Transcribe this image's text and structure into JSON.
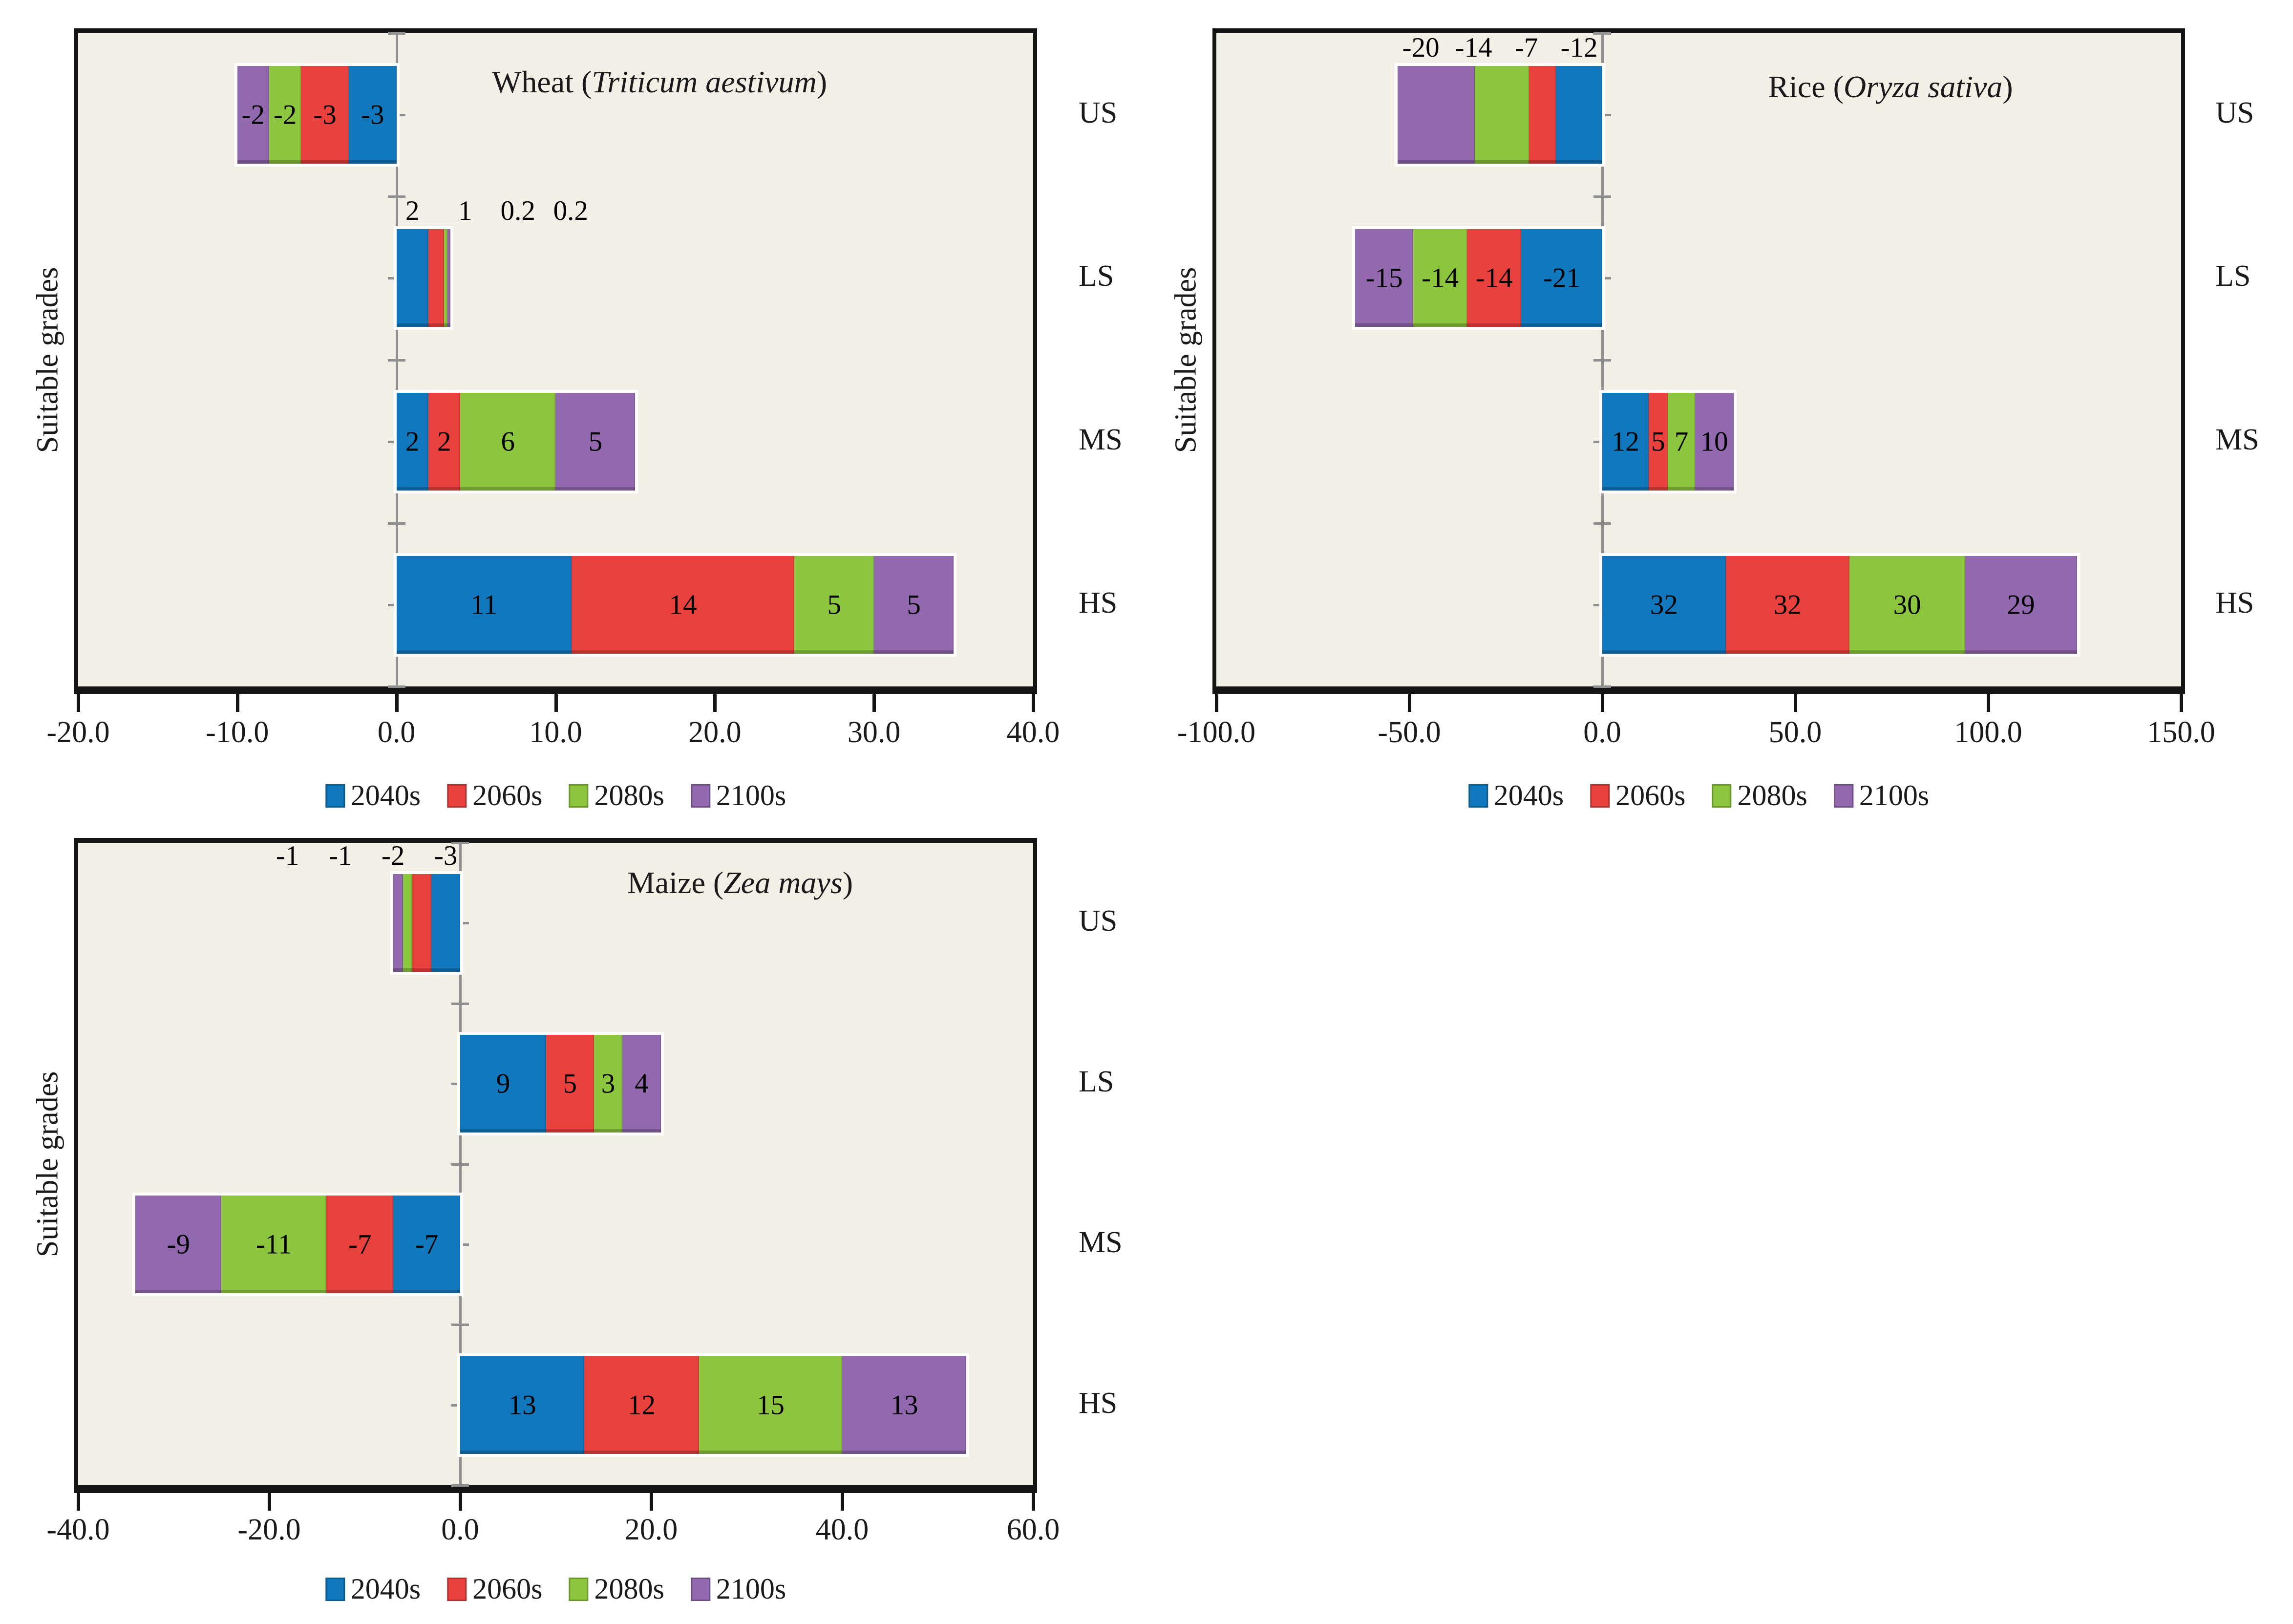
{
  "meta": {
    "plot_background": "#f2efe6",
    "page_background": "#ffffff",
    "axis_line_color": "#8f8f8f",
    "frame_color": "#141414",
    "text_color": "#1a1a1a"
  },
  "legend": {
    "items": [
      {
        "label": "2040s",
        "color": "#1278be"
      },
      {
        "label": "2060s",
        "color": "#e9423e"
      },
      {
        "label": "2080s",
        "color": "#8cc63e"
      },
      {
        "label": "2100s",
        "color": "#9268ae"
      }
    ]
  },
  "chart_data": [
    {
      "id": "wheat",
      "type": "bar",
      "orientation": "horizontal-stacked",
      "title_parts": [
        "Wheat (",
        "Triticum aestivum",
        ")"
      ],
      "ylabel": "Suitable grades",
      "categories": [
        "US",
        "LS",
        "MS",
        "HS"
      ],
      "labels_above": [
        "LS"
      ],
      "xlim": [
        -20,
        40
      ],
      "xticks": [
        "-20.0",
        "-10.0",
        "0.0",
        "10.0",
        "20.0",
        "30.0",
        "40.0"
      ],
      "xtick_values": [
        -20,
        -10,
        0,
        10,
        20,
        30,
        40
      ],
      "series": [
        {
          "name": "2040s",
          "color": "#1278be",
          "values": [
            -3,
            2,
            2,
            11
          ],
          "labels": [
            "-3",
            "2",
            "2",
            "11"
          ]
        },
        {
          "name": "2060s",
          "color": "#e9423e",
          "values": [
            -3,
            1,
            2,
            14
          ],
          "labels": [
            "-3",
            "1",
            "2",
            "14"
          ]
        },
        {
          "name": "2080s",
          "color": "#8cc63e",
          "values": [
            -2,
            0.2,
            6,
            5
          ],
          "labels": [
            "-2",
            "0.2",
            "6",
            "5"
          ]
        },
        {
          "name": "2100s",
          "color": "#9268ae",
          "values": [
            -2,
            0.2,
            5,
            5
          ],
          "labels": [
            "-2",
            "0.2",
            "5",
            "5"
          ]
        }
      ]
    },
    {
      "id": "rice",
      "type": "bar",
      "orientation": "horizontal-stacked",
      "title_parts": [
        "Rice (",
        "Oryza sativa",
        ")"
      ],
      "ylabel": "Suitable grades",
      "categories": [
        "US",
        "LS",
        "MS",
        "HS"
      ],
      "labels_above": [
        "US"
      ],
      "xlim": [
        -100,
        150
      ],
      "xticks": [
        "-100.0",
        "-50.0",
        "0.0",
        "50.0",
        "100.0",
        "150.0"
      ],
      "xtick_values": [
        -100,
        -50,
        0,
        50,
        100,
        150
      ],
      "series": [
        {
          "name": "2040s",
          "color": "#1278be",
          "values": [
            -12,
            -21,
            12,
            32
          ],
          "labels": [
            "-12",
            "-21",
            "12",
            "32"
          ]
        },
        {
          "name": "2060s",
          "color": "#e9423e",
          "values": [
            -7,
            -14,
            5,
            32
          ],
          "labels": [
            "-7",
            "-14",
            "5",
            "32"
          ]
        },
        {
          "name": "2080s",
          "color": "#8cc63e",
          "values": [
            -14,
            -14,
            7,
            30
          ],
          "labels": [
            "-14",
            "-14",
            "7",
            "30"
          ]
        },
        {
          "name": "2100s",
          "color": "#9268ae",
          "values": [
            -20,
            -15,
            10,
            29
          ],
          "labels": [
            "-20",
            "-15",
            "10",
            "29"
          ]
        }
      ]
    },
    {
      "id": "maize",
      "type": "bar",
      "orientation": "horizontal-stacked",
      "title_parts": [
        "Maize (",
        "Zea mays",
        ")"
      ],
      "ylabel": "Suitable grades",
      "categories": [
        "US",
        "LS",
        "MS",
        "HS"
      ],
      "labels_above": [
        "US"
      ],
      "xlim": [
        -40,
        60
      ],
      "xticks": [
        "-40.0",
        "-20.0",
        "0.0",
        "20.0",
        "40.0",
        "60.0"
      ],
      "xtick_values": [
        -40,
        -20,
        0,
        20,
        40,
        60
      ],
      "series": [
        {
          "name": "2040s",
          "color": "#1278be",
          "values": [
            -3,
            9,
            -7,
            13
          ],
          "labels": [
            "-3",
            "9",
            "-7",
            "13"
          ]
        },
        {
          "name": "2060s",
          "color": "#e9423e",
          "values": [
            -2,
            5,
            -7,
            12
          ],
          "labels": [
            "-2",
            "5",
            "-7",
            "12"
          ]
        },
        {
          "name": "2080s",
          "color": "#8cc63e",
          "values": [
            -1,
            3,
            -11,
            15
          ],
          "labels": [
            "-1",
            "3",
            "-11",
            "15"
          ]
        },
        {
          "name": "2100s",
          "color": "#9268ae",
          "values": [
            -1,
            4,
            -9,
            13
          ],
          "labels": [
            "-1",
            "4",
            "-9",
            "13"
          ]
        }
      ]
    }
  ]
}
